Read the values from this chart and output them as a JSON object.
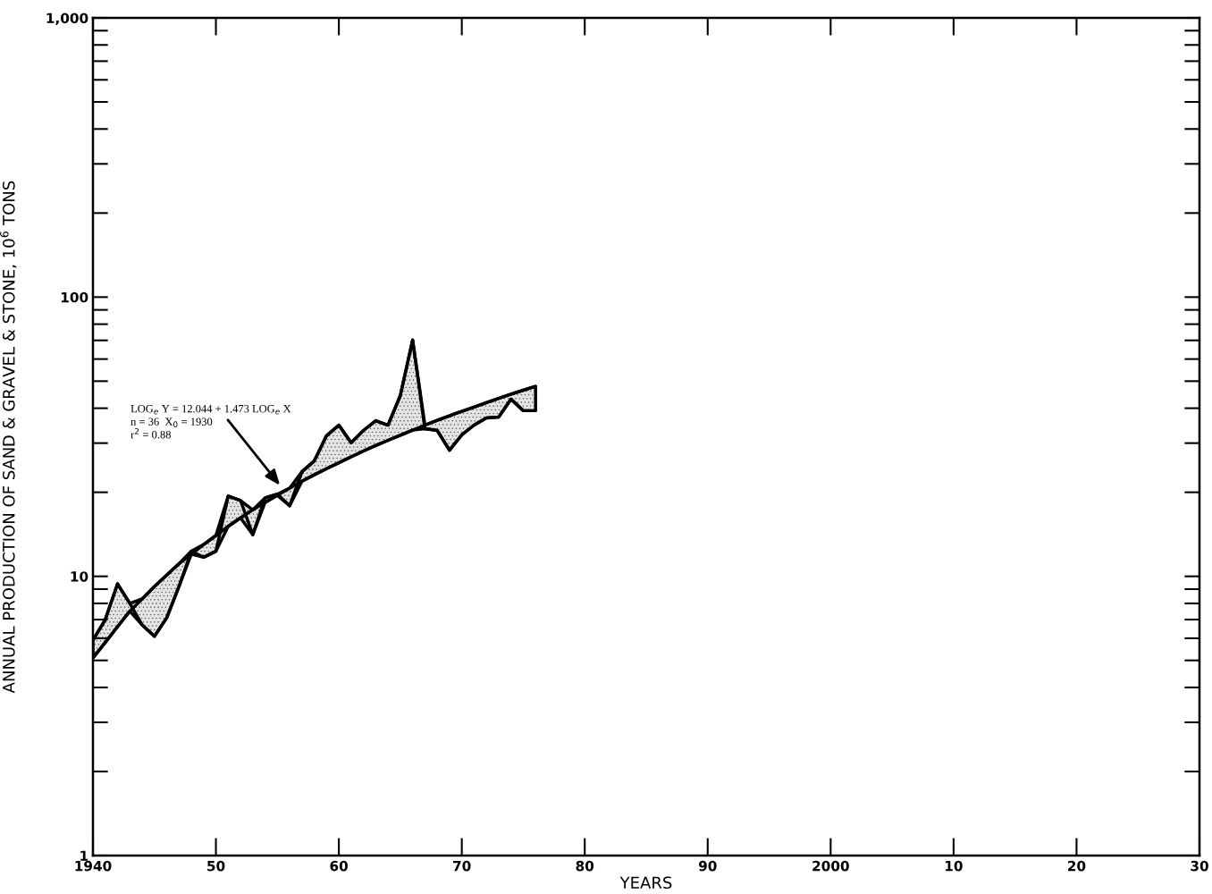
{
  "chart_data": {
    "type": "line",
    "xlabel": "YEARS",
    "ylabel": "ANNUAL PRODUCTION OF SAND & GRAVEL & STONE, 10$^{6}$ TONS",
    "log": "y",
    "xlim": [
      1940,
      2030
    ],
    "ylim": [
      1,
      1000
    ],
    "xticks": [
      {
        "value": 1940,
        "label": "1940"
      },
      {
        "value": 1950,
        "label": "50"
      },
      {
        "value": 1960,
        "label": "60"
      },
      {
        "value": 1970,
        "label": "70"
      },
      {
        "value": 1980,
        "label": "80"
      },
      {
        "value": 1990,
        "label": "90"
      },
      {
        "value": 2000,
        "label": "2000"
      },
      {
        "value": 2010,
        "label": "10"
      },
      {
        "value": 2020,
        "label": "20"
      },
      {
        "value": 2030,
        "label": "30"
      }
    ],
    "yticks": [
      1,
      10,
      100,
      {
        "value": 1000,
        "label": "1,000"
      }
    ],
    "grid": false,
    "marker": "none",
    "line_style": "solid",
    "series": [
      {
        "color": "#000000",
        "x": [
          1940,
          1941,
          1942,
          1943,
          1944,
          1945,
          1946,
          1947,
          1948,
          1949,
          1950,
          1951,
          1952,
          1953,
          1954,
          1955,
          1956,
          1957,
          1958,
          1959,
          1960,
          1961,
          1962,
          1963,
          1964,
          1965,
          1966,
          1967,
          1968,
          1969,
          1970,
          1971,
          1972,
          1973,
          1974,
          1975,
          1976
        ],
        "values": [
          5.9,
          7.0,
          9.4,
          8.0,
          6.7,
          6.1,
          7.1,
          9.2,
          12.3,
          11.7,
          12.3,
          19.4,
          18.7,
          14.1,
          19.1,
          19.7,
          17.9,
          23.7,
          25.9,
          31.9,
          34.8,
          30.1,
          33.3,
          36.1,
          34.8,
          44.4,
          70.2,
          33.8,
          33.3,
          28.3,
          32.1,
          34.8,
          36.9,
          37.2,
          43.1,
          39.2,
          39.2
        ],
        "lower": [
          5.1,
          5.8,
          6.6,
          7.5,
          6.7,
          6.1,
          7.1,
          9.2,
          12.0,
          11.7,
          12.3,
          15.1,
          16.2,
          14.1,
          18.4,
          19.5,
          17.9,
          21.9,
          23.1,
          24.3,
          25.5,
          26.8,
          28.1,
          29.4,
          30.7,
          32.0,
          33.4,
          33.8,
          33.3,
          28.3,
          32.1,
          34.8,
          36.9,
          37.2,
          43.1,
          39.2,
          39.2
        ],
        "upper": [
          5.9,
          7.0,
          9.4,
          8.0,
          8.3,
          9.2,
          10.1,
          11.1,
          12.3,
          13.0,
          14.0,
          19.4,
          18.7,
          17.3,
          19.1,
          19.7,
          20.7,
          23.7,
          25.9,
          31.9,
          34.8,
          30.1,
          33.3,
          36.1,
          34.8,
          44.4,
          70.2,
          34.8,
          36.2,
          37.6,
          39.0,
          40.4,
          41.9,
          43.4,
          44.9,
          46.4,
          47.9
        ]
      },
      {
        "color": "#000000",
        "x": [
          1940,
          1941,
          1942,
          1943,
          1944,
          1945,
          1946,
          1947,
          1948,
          1949,
          1950,
          1951,
          1952,
          1953,
          1954,
          1955,
          1956,
          1957,
          1958,
          1959,
          1960,
          1961,
          1962,
          1963,
          1964,
          1965,
          1966,
          1967,
          1968,
          1969,
          1970,
          1971,
          1972,
          1973,
          1974,
          1975,
          1976
        ],
        "values": [
          5.1,
          5.8,
          6.6,
          7.5,
          8.3,
          9.2,
          10.1,
          11.1,
          12.0,
          13.0,
          14.0,
          15.1,
          16.2,
          17.3,
          18.4,
          19.5,
          20.7,
          21.9,
          23.1,
          24.3,
          25.5,
          26.8,
          28.1,
          29.4,
          30.7,
          32.0,
          33.4,
          34.8,
          36.2,
          37.6,
          39.0,
          40.4,
          41.9,
          43.4,
          44.9,
          46.4,
          47.9
        ]
      }
    ],
    "annotations": [
      "LOG$_{e}$ Y = 12.044 + 1.473 LOG$_{e}$ X",
      "n = 36  X$_{0}$ = 1930",
      "r$^{2}$ = 0.88"
    ]
  }
}
